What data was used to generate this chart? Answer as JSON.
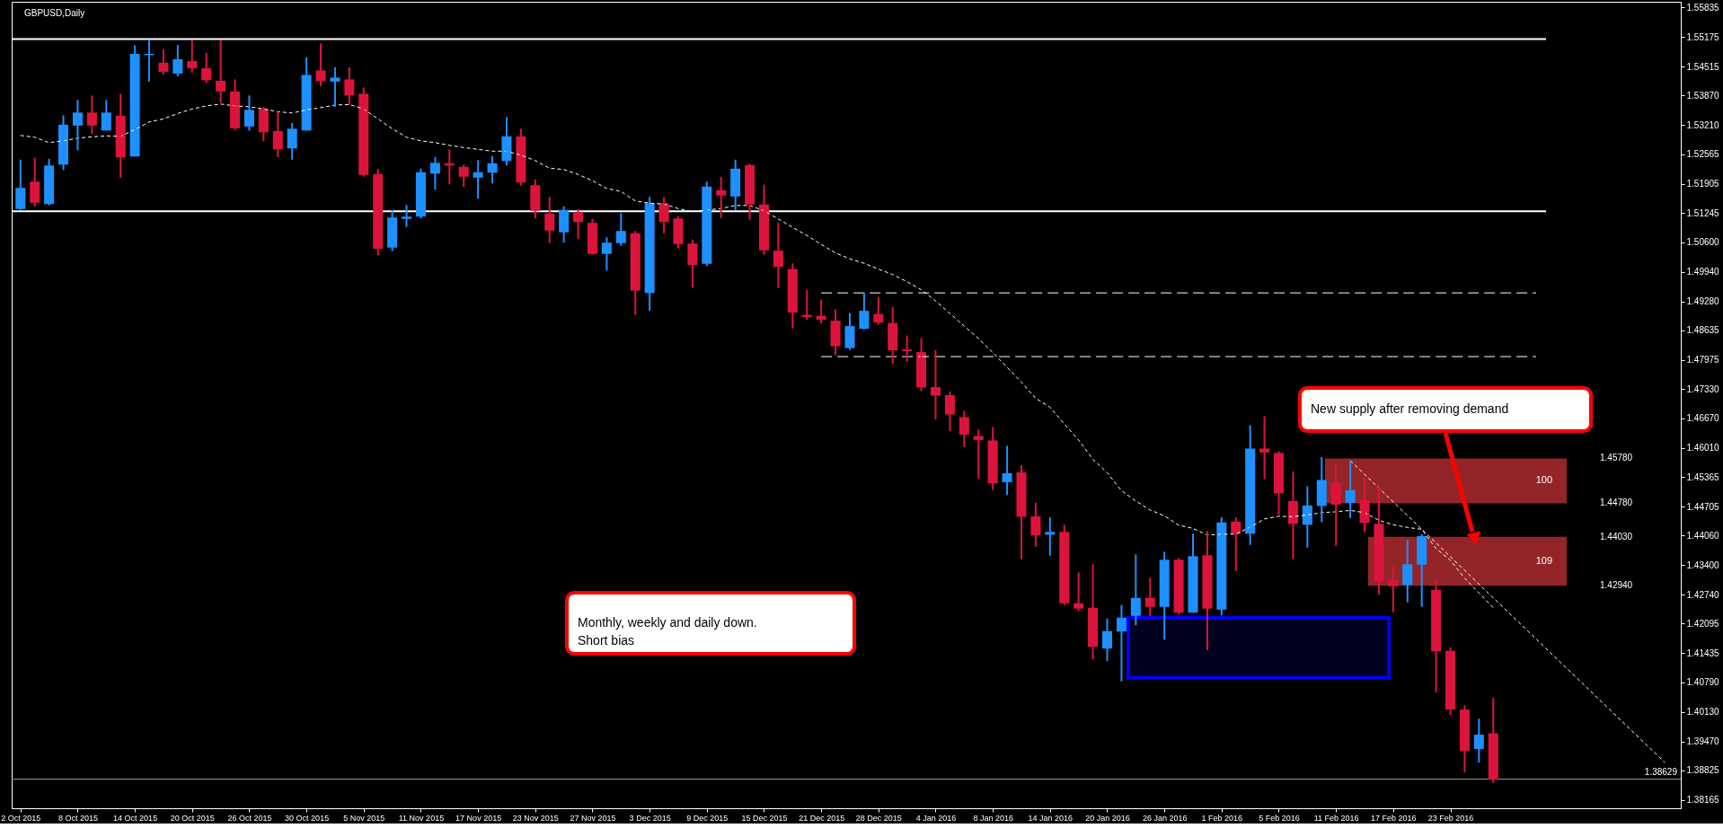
{
  "chart_data": {
    "type": "candlestick",
    "title": "GBPUSD,Daily",
    "categories": [
      "2 Oct 2015",
      null,
      null,
      null,
      "8 Oct 2015",
      null,
      null,
      null,
      "14 Oct 2015",
      null,
      null,
      null,
      "20 Oct 2015",
      null,
      null,
      null,
      "26 Oct 2015",
      null,
      null,
      null,
      "30 Oct 2015",
      null,
      null,
      null,
      "5 Nov 2015",
      null,
      null,
      null,
      "11 Nov 2015",
      null,
      null,
      null,
      "17 Nov 2015",
      null,
      null,
      null,
      "23 Nov 2015",
      null,
      null,
      null,
      "27 Nov 2015",
      null,
      null,
      null,
      "3 Dec 2015",
      null,
      null,
      null,
      "9 Dec 2015",
      null,
      null,
      null,
      "15 Dec 2015",
      null,
      null,
      null,
      "21 Dec 2015",
      null,
      null,
      null,
      "28 Dec 2015",
      null,
      null,
      null,
      "4 Jan 2016",
      null,
      null,
      null,
      "8 Jan 2016",
      null,
      null,
      null,
      "14 Jan 2016",
      null,
      null,
      null,
      "20 Jan 2016",
      null,
      null,
      null,
      "26 Jan 2016",
      null,
      null,
      null,
      "1 Feb 2016",
      null,
      null,
      null,
      "5 Feb 2016",
      null,
      null,
      null,
      "11 Feb 2016",
      null,
      null,
      null,
      "17 Feb 2016",
      null,
      null,
      null,
      "23 Feb 2016",
      null,
      null,
      null,
      null,
      null,
      null,
      null,
      null,
      null,
      null,
      null,
      null,
      null,
      null,
      null,
      null
    ],
    "ohlc": [
      [
        1.5134,
        1.5244,
        1.5132,
        1.5181
      ],
      [
        1.5195,
        1.5248,
        1.5139,
        1.5148
      ],
      [
        1.5145,
        1.5246,
        1.5142,
        1.5231
      ],
      [
        1.5233,
        1.5343,
        1.5221,
        1.5322
      ],
      [
        1.532,
        1.5377,
        1.5265,
        1.5349
      ],
      [
        1.5349,
        1.5387,
        1.5301,
        1.532
      ],
      [
        1.5309,
        1.5377,
        1.5309,
        1.5349
      ],
      [
        1.5342,
        1.5391,
        1.5204,
        1.5249
      ],
      [
        1.5251,
        1.5499,
        1.5251,
        1.548
      ],
      [
        1.5477,
        1.551,
        1.5418,
        1.548
      ],
      [
        1.546,
        1.549,
        1.5434,
        1.544
      ],
      [
        1.5436,
        1.55,
        1.543,
        1.5468
      ],
      [
        1.5464,
        1.551,
        1.5438,
        1.5448
      ],
      [
        1.5448,
        1.5482,
        1.5415,
        1.5421
      ],
      [
        1.542,
        1.551,
        1.5371,
        1.5396
      ],
      [
        1.5396,
        1.5423,
        1.5309,
        1.5314
      ],
      [
        1.5318,
        1.5387,
        1.5309,
        1.5355
      ],
      [
        1.5357,
        1.5362,
        1.5285,
        1.5305
      ],
      [
        1.5308,
        1.5351,
        1.525,
        1.5267
      ],
      [
        1.5269,
        1.5326,
        1.5244,
        1.5313
      ],
      [
        1.5309,
        1.5472,
        1.5309,
        1.5433
      ],
      [
        1.5443,
        1.5503,
        1.5408,
        1.5419
      ],
      [
        1.5418,
        1.545,
        1.5362,
        1.5427
      ],
      [
        1.5423,
        1.545,
        1.5366,
        1.5387
      ],
      [
        1.5391,
        1.5405,
        1.5206,
        1.521
      ],
      [
        1.5212,
        1.5224,
        1.5031,
        1.5045
      ],
      [
        1.5048,
        1.5132,
        1.504,
        1.5115
      ],
      [
        1.5112,
        1.5143,
        1.5094,
        1.5117
      ],
      [
        1.5117,
        1.5224,
        1.5113,
        1.5216
      ],
      [
        1.5213,
        1.525,
        1.5177,
        1.5237
      ],
      [
        1.5236,
        1.5267,
        1.5189,
        1.5231
      ],
      [
        1.5228,
        1.5233,
        1.5183,
        1.5206
      ],
      [
        1.5204,
        1.5243,
        1.5157,
        1.5216
      ],
      [
        1.5215,
        1.5252,
        1.5191,
        1.5236
      ],
      [
        1.5241,
        1.5339,
        1.5231,
        1.5296
      ],
      [
        1.5296,
        1.5313,
        1.5186,
        1.5193
      ],
      [
        1.5187,
        1.52,
        1.5113,
        1.513
      ],
      [
        1.5124,
        1.5161,
        1.5058,
        1.5086
      ],
      [
        1.5082,
        1.514,
        1.5059,
        1.5132
      ],
      [
        1.5127,
        1.5134,
        1.5068,
        1.5105
      ],
      [
        1.5103,
        1.5112,
        1.5032,
        1.5034
      ],
      [
        1.5034,
        1.5071,
        1.4997,
        1.5059
      ],
      [
        1.5058,
        1.5125,
        1.5052,
        1.5085
      ],
      [
        1.508,
        1.5085,
        1.4898,
        1.4952
      ],
      [
        1.4947,
        1.5161,
        1.4907,
        1.5147
      ],
      [
        1.5147,
        1.5161,
        1.508,
        1.5105
      ],
      [
        1.5113,
        1.5118,
        1.5046,
        1.5056
      ],
      [
        1.5057,
        1.5066,
        1.4959,
        1.5009
      ],
      [
        1.5012,
        1.5195,
        1.5007,
        1.5184
      ],
      [
        1.5176,
        1.5206,
        1.5114,
        1.5164
      ],
      [
        1.5162,
        1.5244,
        1.5132,
        1.5224
      ],
      [
        1.5232,
        1.5235,
        1.511,
        1.5144
      ],
      [
        1.5144,
        1.5188,
        1.5032,
        1.5042
      ],
      [
        1.5041,
        1.5103,
        1.4958,
        1.5005
      ],
      [
        1.5,
        1.5013,
        1.4868,
        1.4903
      ],
      [
        1.4898,
        1.4954,
        1.4887,
        1.4893
      ],
      [
        1.4896,
        1.4932,
        1.4879,
        1.4887
      ],
      [
        1.4885,
        1.491,
        1.4808,
        1.4828
      ],
      [
        1.4824,
        1.4902,
        1.482,
        1.4873
      ],
      [
        1.4867,
        1.4947,
        1.4866,
        1.4907
      ],
      [
        1.49,
        1.4938,
        1.4876,
        1.4881
      ],
      [
        1.488,
        1.4916,
        1.4788,
        1.4819
      ],
      [
        1.4821,
        1.4852,
        1.4793,
        1.4817
      ],
      [
        1.4815,
        1.4846,
        1.4728,
        1.4736
      ],
      [
        1.4737,
        1.4819,
        1.4665,
        1.4718
      ],
      [
        1.4719,
        1.4727,
        1.4639,
        1.4676
      ],
      [
        1.467,
        1.4684,
        1.4603,
        1.4631
      ],
      [
        1.4628,
        1.4642,
        1.4533,
        1.4619
      ],
      [
        1.4618,
        1.4648,
        1.4508,
        1.4522
      ],
      [
        1.4525,
        1.4606,
        1.4496,
        1.4545
      ],
      [
        1.4547,
        1.4563,
        1.4353,
        1.4448
      ],
      [
        1.4449,
        1.4479,
        1.4381,
        1.4406
      ],
      [
        1.4408,
        1.4447,
        1.4361,
        1.4414
      ],
      [
        1.4414,
        1.443,
        1.4251,
        1.4255
      ],
      [
        1.4255,
        1.4324,
        1.4237,
        1.4243
      ],
      [
        1.4245,
        1.4342,
        1.413,
        1.4158
      ],
      [
        1.4154,
        1.4221,
        1.4126,
        1.4193
      ],
      [
        1.4192,
        1.4251,
        1.4081,
        1.4223
      ],
      [
        1.4227,
        1.4364,
        1.4206,
        1.4267
      ],
      [
        1.4267,
        1.4312,
        1.4227,
        1.4247
      ],
      [
        1.4247,
        1.437,
        1.4174,
        1.4352
      ],
      [
        1.4352,
        1.4356,
        1.423,
        1.4234
      ],
      [
        1.4234,
        1.441,
        1.4234,
        1.436
      ],
      [
        1.4362,
        1.4416,
        1.415,
        1.4243
      ],
      [
        1.4241,
        1.4447,
        1.4228,
        1.4435
      ],
      [
        1.4437,
        1.4447,
        1.4327,
        1.441
      ],
      [
        1.441,
        1.4652,
        1.4385,
        1.46
      ],
      [
        1.46,
        1.4672,
        1.4532,
        1.4591
      ],
      [
        1.459,
        1.4594,
        1.4452,
        1.45
      ],
      [
        1.4483,
        1.4549,
        1.4353,
        1.4432
      ],
      [
        1.443,
        1.4516,
        1.4379,
        1.4473
      ],
      [
        1.4472,
        1.4581,
        1.4436,
        1.453
      ],
      [
        1.4523,
        1.4569,
        1.4383,
        1.4475
      ],
      [
        1.4479,
        1.4573,
        1.4445,
        1.4507
      ],
      [
        1.4485,
        1.4536,
        1.4414,
        1.4434
      ],
      [
        1.4432,
        1.4518,
        1.4274,
        1.4304
      ],
      [
        1.4306,
        1.4337,
        1.4235,
        1.4293
      ],
      [
        1.4296,
        1.4396,
        1.4257,
        1.4342
      ],
      [
        1.4341,
        1.4409,
        1.4247,
        1.4405
      ],
      [
        1.4285,
        1.4308,
        1.4056,
        1.4148
      ],
      [
        1.4149,
        1.4157,
        1.4006,
        1.4018
      ],
      [
        1.4018,
        1.4028,
        1.3878,
        1.3926
      ],
      [
        1.393,
        1.3998,
        1.39,
        1.3962
      ],
      [
        1.3965,
        1.4044,
        1.3854,
        1.3862
      ],
      null,
      null,
      null,
      null,
      null,
      null,
      null,
      null,
      null,
      null,
      null,
      null,
      null
    ],
    "colors": [
      "#1e90ff",
      "#dc143c",
      "#1e90ff",
      "#1e90ff",
      "#1e90ff",
      "#dc143c",
      "#1e90ff",
      "#dc143c",
      "#1e90ff",
      "#1e90ff",
      "#dc143c",
      "#1e90ff",
      "#dc143c",
      "#dc143c",
      "#dc143c",
      "#dc143c",
      "#1e90ff",
      "#dc143c",
      "#dc143c",
      "#1e90ff",
      "#1e90ff",
      "#dc143c",
      "#1e90ff",
      "#dc143c",
      "#dc143c",
      "#dc143c",
      "#1e90ff",
      "#1e90ff",
      "#1e90ff",
      "#1e90ff",
      "#dc143c",
      "#dc143c",
      "#1e90ff",
      "#1e90ff",
      "#1e90ff",
      "#dc143c",
      "#dc143c",
      "#dc143c",
      "#1e90ff",
      "#dc143c",
      "#dc143c",
      "#1e90ff",
      "#1e90ff",
      "#dc143c",
      "#1e90ff",
      "#dc143c",
      "#dc143c",
      "#dc143c",
      "#1e90ff",
      "#dc143c",
      "#1e90ff",
      "#dc143c",
      "#dc143c",
      "#dc143c",
      "#dc143c",
      "#dc143c",
      "#dc143c",
      "#dc143c",
      "#1e90ff",
      "#1e90ff",
      "#dc143c",
      "#dc143c",
      "#dc143c",
      "#dc143c",
      "#dc143c",
      "#dc143c",
      "#dc143c",
      "#dc143c",
      "#dc143c",
      "#1e90ff",
      "#dc143c",
      "#dc143c",
      "#1e90ff",
      "#dc143c",
      "#dc143c",
      "#dc143c",
      "#1e90ff",
      "#1e90ff",
      "#1e90ff",
      "#dc143c",
      "#1e90ff",
      "#dc143c",
      "#1e90ff",
      "#dc143c",
      "#1e90ff",
      "#dc143c",
      "#1e90ff",
      "#dc143c",
      "#dc143c",
      "#dc143c",
      "#1e90ff",
      "#1e90ff",
      "#dc143c",
      "#1e90ff",
      "#dc143c",
      "#dc143c",
      "#dc143c",
      "#1e90ff",
      "#1e90ff",
      "#dc143c",
      "#dc143c",
      "#dc143c",
      "#1e90ff",
      "#dc143c",
      null,
      null,
      null,
      null,
      null,
      null,
      null,
      null,
      null,
      null,
      null,
      null,
      null
    ],
    "series": [
      {
        "type": "line",
        "color": "#ffffff",
        "line_style": "dotted",
        "values": [
          1.5298,
          1.5294,
          1.5282,
          1.5286,
          1.5292,
          1.5295,
          1.5297,
          1.5296,
          1.5311,
          1.5328,
          1.5335,
          1.5347,
          1.5357,
          1.5364,
          1.5368,
          1.5364,
          1.5362,
          1.5357,
          1.5351,
          1.5348,
          1.5355,
          1.536,
          1.5366,
          1.5367,
          1.5357,
          1.5335,
          1.5313,
          1.5294,
          1.5286,
          1.5282,
          1.5276,
          1.5271,
          1.5267,
          1.5263,
          1.5263,
          1.5254,
          1.5242,
          1.5225,
          1.5222,
          1.5211,
          1.5197,
          1.518,
          1.5173,
          1.5152,
          1.5147,
          1.5145,
          1.5135,
          1.5128,
          1.5132,
          1.5135,
          1.5142,
          1.5142,
          1.513,
          1.5112,
          1.5093,
          1.5075,
          1.5055,
          1.5036,
          1.5023,
          1.5013,
          1.5,
          1.4988,
          1.4972,
          1.4954,
          1.4929,
          1.4901,
          1.4873,
          1.4845,
          1.4814,
          1.4781,
          1.4748,
          1.4712,
          1.4692,
          1.4655,
          1.4619,
          1.4576,
          1.4546,
          1.4506,
          1.4483,
          1.4463,
          1.445,
          1.4429,
          1.4422,
          1.4407,
          1.4409,
          1.4409,
          1.4425,
          1.4443,
          1.4449,
          1.4448,
          1.4452,
          1.4457,
          1.4459,
          1.4462,
          1.4457,
          1.444,
          1.443,
          1.4424,
          1.442,
          1.4377,
          1.4351,
          1.4311,
          1.4278,
          1.4245,
          null,
          null,
          null,
          null,
          null,
          null,
          null,
          null,
          null,
          null,
          null,
          null,
          null
        ]
      },
      {
        "type": "line",
        "color": "#ffffff",
        "line_style": "dashed",
        "values": [
          null,
          null,
          null,
          null,
          null,
          null,
          null,
          null,
          null,
          null,
          null,
          null,
          null,
          null,
          null,
          null,
          null,
          null,
          null,
          null,
          null,
          null,
          null,
          null,
          null,
          null,
          null,
          null,
          null,
          null,
          null,
          null,
          null,
          null,
          null,
          null,
          null,
          null,
          null,
          null,
          null,
          null,
          null,
          null,
          null,
          null,
          null,
          null,
          null,
          null,
          null,
          null,
          null,
          null,
          null,
          null,
          1.4947,
          1.4947,
          1.4947,
          1.4947,
          1.4947,
          1.4947,
          1.4947,
          1.4947,
          1.4947,
          1.4947,
          1.4947,
          1.4947,
          1.4947,
          1.4947,
          1.4947,
          1.4947,
          1.4947,
          1.4947,
          1.4947,
          1.4947,
          1.4947,
          1.4947,
          1.4947,
          1.4947,
          1.4947,
          1.4947,
          1.4947,
          1.4947,
          1.4947,
          1.4947,
          1.4947,
          1.4947,
          1.4947,
          1.4947,
          1.4947,
          1.4947,
          1.4947,
          1.4947,
          1.4947,
          1.4947,
          1.4947,
          1.4947,
          1.4947,
          1.4947,
          1.4947,
          1.4947,
          1.4947,
          1.4947,
          1.4947,
          1.4947,
          1.4947,
          null,
          null,
          null,
          null,
          null,
          null,
          null,
          null,
          null,
          null
        ]
      },
      {
        "type": "line",
        "color": "#ffffff",
        "line_style": "dashed",
        "values": [
          null,
          null,
          null,
          null,
          null,
          null,
          null,
          null,
          null,
          null,
          null,
          null,
          null,
          null,
          null,
          null,
          null,
          null,
          null,
          null,
          null,
          null,
          null,
          null,
          null,
          null,
          null,
          null,
          null,
          null,
          null,
          null,
          null,
          null,
          null,
          null,
          null,
          null,
          null,
          null,
          null,
          null,
          null,
          null,
          null,
          null,
          null,
          null,
          null,
          null,
          null,
          null,
          null,
          null,
          null,
          null,
          1.4805,
          1.4805,
          1.4805,
          1.4805,
          1.4805,
          1.4805,
          1.4805,
          1.4805,
          1.4805,
          1.4805,
          1.4805,
          1.4805,
          1.4805,
          1.4805,
          1.4805,
          1.4805,
          1.4805,
          1.4805,
          1.4805,
          1.4805,
          1.4805,
          1.4805,
          1.4805,
          1.4805,
          1.4805,
          1.4805,
          1.4805,
          1.4805,
          1.4805,
          1.4805,
          1.4805,
          1.4805,
          1.4805,
          1.4805,
          1.4805,
          1.4805,
          1.4805,
          1.4805,
          1.4805,
          1.4805,
          1.4805,
          1.4805,
          1.4805,
          1.4805,
          1.4805,
          1.4805,
          1.4805,
          1.4805,
          1.4805,
          1.4805,
          1.4805,
          null,
          null,
          null,
          null,
          null,
          null,
          null,
          null,
          null,
          null
        ]
      },
      {
        "type": "line",
        "color": "#ffffff",
        "line_style": "dotted",
        "values": [
          null,
          null,
          null,
          null,
          null,
          null,
          null,
          null,
          null,
          null,
          null,
          null,
          null,
          null,
          null,
          null,
          null,
          null,
          null,
          null,
          null,
          null,
          null,
          null,
          null,
          null,
          null,
          null,
          null,
          null,
          null,
          null,
          null,
          null,
          null,
          null,
          null,
          null,
          null,
          null,
          null,
          null,
          null,
          null,
          null,
          null,
          null,
          null,
          null,
          null,
          null,
          null,
          null,
          null,
          null,
          null,
          null,
          null,
          null,
          null,
          null,
          null,
          null,
          null,
          null,
          null,
          null,
          null,
          null,
          null,
          null,
          null,
          null,
          null,
          null,
          null,
          null,
          null,
          null,
          null,
          null,
          null,
          null,
          null,
          null,
          null,
          null,
          null,
          null,
          null,
          null,
          null,
          null,
          1.4573,
          null,
          null,
          null,
          null,
          null,
          null,
          null,
          null,
          null,
          null,
          null,
          null,
          null,
          null,
          null,
          null,
          null,
          null,
          null,
          null,
          null,
          1.39,
          null
        ]
      }
    ],
    "ref_lines": [
      {
        "axis": "y",
        "value": 1.5513,
        "color": "#ffffff"
      },
      {
        "axis": "y",
        "value": 1.5129,
        "color": "#ffffff"
      },
      {
        "axis": "y",
        "value": 1.38629,
        "label": "1.38629",
        "color": "#8a9aa8"
      }
    ],
    "bands": [
      {
        "axis": "y",
        "from": 1.4478,
        "to": 1.4578,
        "label": "100",
        "color": "#a3292c"
      },
      {
        "axis": "y",
        "from": 1.4294,
        "to": 1.4403,
        "label": "109",
        "color": "#a3292c"
      },
      {
        "axis": "y",
        "from": 1.4089,
        "to": 1.4223,
        "color": "#0000ff"
      }
    ],
    "annotations": [
      "Monthly, weekly and daily down.\nShort bias",
      "New supply after removing demand",
      "1.45780",
      "1.44780",
      "1.44030",
      "1.42940"
    ],
    "ylim": [
      1.3798,
      1.5596
    ],
    "yticks": [
      1.55835,
      1.55175,
      1.54515,
      {
        "value": 1.5387,
        "label": "1.53870"
      },
      {
        "value": 1.5321,
        "label": "1.53210"
      },
      1.52565,
      1.51905,
      1.51245,
      {
        "value": 1.506,
        "label": "1.50600"
      },
      {
        "value": 1.4994,
        "label": "1.49940"
      },
      {
        "value": 1.4928,
        "label": "1.49280"
      },
      1.48635,
      1.47975,
      {
        "value": 1.4733,
        "label": "1.47330"
      },
      {
        "value": 1.4667,
        "label": "1.46670"
      },
      {
        "value": 1.4601,
        "label": "1.46010"
      },
      1.45365,
      1.44705,
      {
        "value": 1.4406,
        "label": "1.44060"
      },
      {
        "value": 1.434,
        "label": "1.43400"
      },
      {
        "value": 1.4274,
        "label": "1.42740"
      },
      1.42095,
      1.41435,
      {
        "value": 1.4079,
        "label": "1.40790"
      },
      {
        "value": 1.4013,
        "label": "1.40130"
      },
      {
        "value": 1.3947,
        "label": "1.39470"
      },
      1.38825,
      1.38165
    ]
  }
}
